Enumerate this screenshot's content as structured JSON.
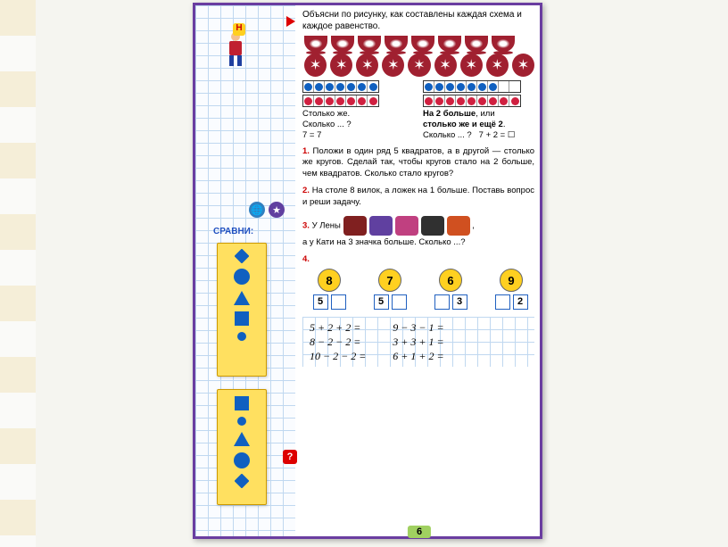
{
  "intro": "Объясни по рисунку, как составлены каждая схема и каждое равенство.",
  "cups_count": 8,
  "stars_count": 9,
  "left_block": {
    "strip1": [
      "blue",
      "blue",
      "blue",
      "blue",
      "blue",
      "blue",
      "blue"
    ],
    "strip2": [
      "red",
      "red",
      "red",
      "red",
      "red",
      "red",
      "red"
    ],
    "text1": "Столько же.",
    "text2": "Сколько ... ?",
    "eq": "7 = 7"
  },
  "right_block": {
    "strip1": [
      "blue",
      "blue",
      "blue",
      "blue",
      "blue",
      "blue",
      "blue",
      "",
      ""
    ],
    "strip2": [
      "red",
      "red",
      "red",
      "red",
      "red",
      "red",
      "red",
      "red",
      "red"
    ],
    "bold1": "На 2 больше",
    "plain1": ", или",
    "bold2": "столько же и ещё 2",
    "plain2": ".",
    "text3": "Сколько ... ?",
    "eq": "7 + 2 = ☐"
  },
  "tasks": {
    "t1": "Положи в один ряд 5 квадратов, а в другой — столько же кругов. Сделай так, чтобы кругов стало на 2 больше, чем квадратов. Сколько стало кругов?",
    "t2": "На столе 8 вилок, а ложек на 1 больше. Поставь вопрос и реши задачу.",
    "t3a": "У Лены",
    "t3b": "а у Кати на 3 значка больше. Сколько ...?",
    "t4_circles": [
      {
        "n": "8",
        "boxes": [
          "5",
          ""
        ]
      },
      {
        "n": "7",
        "boxes": [
          "5",
          ""
        ]
      },
      {
        "n": "6",
        "boxes": [
          "",
          "3"
        ]
      },
      {
        "n": "9",
        "boxes": [
          "",
          "2"
        ]
      }
    ]
  },
  "equations": {
    "col1": [
      "5 + 2 + 2 =",
      "8 − 2 − 2 =",
      "10 − 2 − 2 ="
    ],
    "col2": [
      "9 − 3 − 1 =",
      "3 + 3 + 1 =",
      "6 + 1 + 2 ="
    ]
  },
  "sidebar": {
    "n_label": "Н",
    "compare": "СРАВНИ:",
    "q": "?"
  },
  "page_number": "6",
  "animal_colors": [
    "#802020",
    "#6040a0",
    "#c04080",
    "#303030",
    "#d05020"
  ],
  "colors": {
    "blue": "#1060c0",
    "red": "#d02040",
    "yellow": "#ffd020",
    "frame": "#6a3da0"
  }
}
